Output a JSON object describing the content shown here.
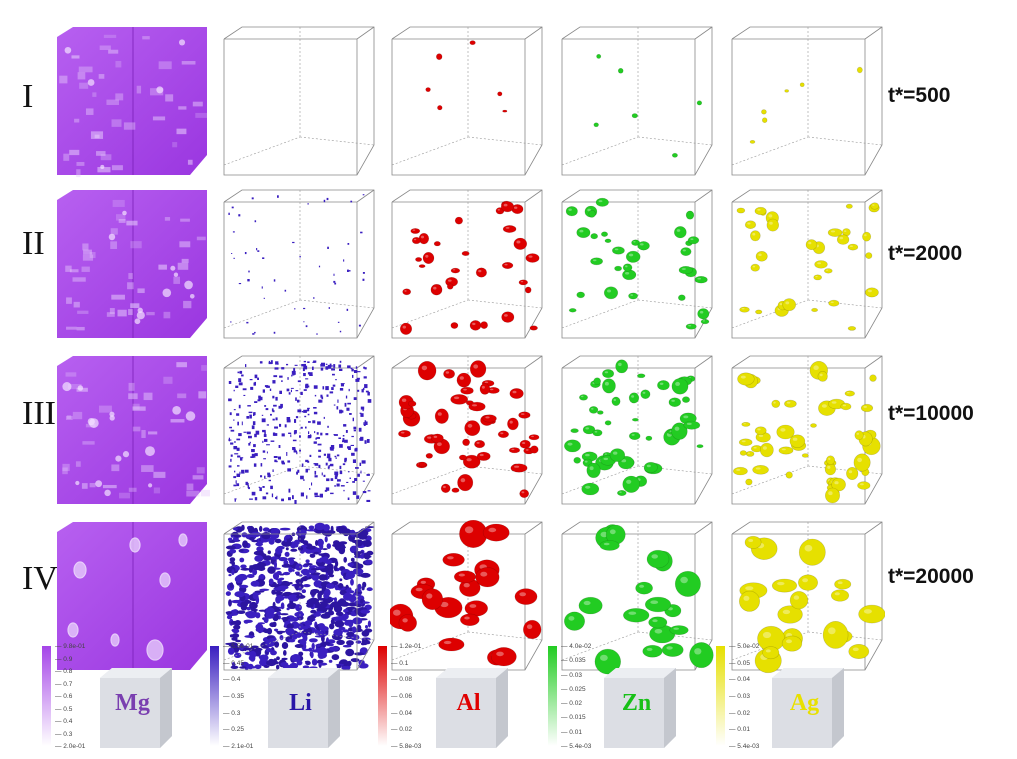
{
  "rows": [
    {
      "label": "I",
      "time": "t*=500"
    },
    {
      "label": "II",
      "time": "t*=2000"
    },
    {
      "label": "III",
      "time": "t*=10000"
    },
    {
      "label": "IV",
      "time": "t*=20000"
    }
  ],
  "elements": [
    {
      "name": "Mg",
      "color": "#7a3fb0",
      "field_color": "#a545e8",
      "ticks": [
        "9.8e-01",
        "0.9",
        "0.8",
        "0.7",
        "0.6",
        "0.5",
        "0.4",
        "0.3",
        "2.0e-01"
      ]
    },
    {
      "name": "Li",
      "color": "#2a16a8",
      "field_color": "#3a1fc0",
      "ticks": [
        "5.5e-01",
        "0.45",
        "0.4",
        "0.35",
        "0.3",
        "0.25",
        "2.1e-01"
      ]
    },
    {
      "name": "Al",
      "color": "#e00000",
      "field_color": "#dd0000",
      "ticks": [
        "1.2e-01",
        "0.1",
        "0.08",
        "0.06",
        "0.04",
        "0.02",
        "5.8e-03"
      ]
    },
    {
      "name": "Zn",
      "color": "#18c018",
      "field_color": "#22cc22",
      "ticks": [
        "4.0e-02",
        "0.035",
        "0.03",
        "0.025",
        "0.02",
        "0.015",
        "0.01",
        "5.4e-03"
      ]
    },
    {
      "name": "Ag",
      "color": "#e8e000",
      "field_color": "#e6e000",
      "ticks": [
        "5.0e-02",
        "0.05",
        "0.04",
        "0.03",
        "0.02",
        "0.01",
        "5.4e-03"
      ]
    }
  ]
}
